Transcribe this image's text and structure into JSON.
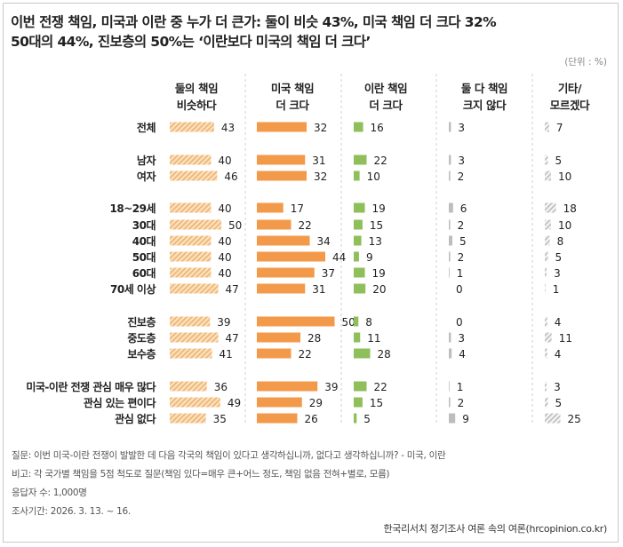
{
  "title_line1": "이번 전쟁 책임, 미국과 이란 중 누가 더 큰가: 둘이 비슷 43%, 미국 책임 더 크다 32%",
  "title_line2": "50대의 44%, 진보층의 50%는 ‘이란보다 미국의 책임 더 크다’",
  "unit": "(단위 : %)",
  "question": "질문: 이번 미국-이란 전쟁이 발발한 데 다음 각국의 책임이 있다고 생각하십니까, 없다고 생각하십니까? - 미국, 이란",
  "note": "비고: 각 국가별 책임을 5점 척도로 질문(책임 있다=매우 큰+어느 정도, 책임 없음 전혀+별로, 모름)",
  "respondents": "응답자 수: 1,000명",
  "survey_period": "조사기간: 2026. 3. 13. ~ 16.",
  "source": "한국리서치 정기조사 여론 속의 여론(hrcopinion.co.kr)",
  "colors": {
    "both": "#f0b97a",
    "usa": "#f39a4a",
    "iran": "#8fbf5a",
    "neither": "#bdbdbd",
    "other": "#c4c4c4"
  },
  "chart_data": {
    "type": "bar",
    "orientation": "horizontal",
    "series": [
      {
        "name": "둘의 책임\n비슷하다",
        "values": [
          43,
          40,
          46,
          40,
          50,
          40,
          40,
          40,
          47,
          39,
          47,
          41,
          36,
          49,
          35
        ]
      },
      {
        "name": "미국 책임\n더 크다",
        "values": [
          32,
          31,
          32,
          17,
          22,
          34,
          44,
          37,
          31,
          50,
          28,
          22,
          39,
          29,
          26
        ]
      },
      {
        "name": "이란 책임\n더 크다",
        "values": [
          16,
          22,
          10,
          19,
          15,
          13,
          9,
          19,
          20,
          8,
          11,
          28,
          22,
          15,
          5
        ]
      },
      {
        "name": "둘 다 책임\n크지 않다",
        "values": [
          3,
          3,
          2,
          6,
          2,
          5,
          2,
          1,
          0,
          0,
          3,
          4,
          1,
          2,
          9
        ]
      },
      {
        "name": "기타/\n모르겠다",
        "values": [
          7,
          5,
          10,
          18,
          10,
          8,
          5,
          3,
          1,
          4,
          11,
          4,
          3,
          5,
          25
        ]
      }
    ],
    "categories": [
      "전체",
      "남자",
      "여자",
      "18~29세",
      "30대",
      "40대",
      "50대",
      "60대",
      "70세 이상",
      "진보층",
      "중도층",
      "보수층",
      "미국-이란 전쟁 관심 매우 많다",
      "관심 있는 편이다",
      "관심 없다"
    ],
    "groups": [
      [
        0
      ],
      [
        1,
        2
      ],
      [
        3,
        4,
        5,
        6,
        7,
        8
      ],
      [
        9,
        10,
        11
      ],
      [
        12,
        13,
        14
      ]
    ],
    "xlim": [
      0,
      50
    ],
    "legend": "column headers at top"
  }
}
